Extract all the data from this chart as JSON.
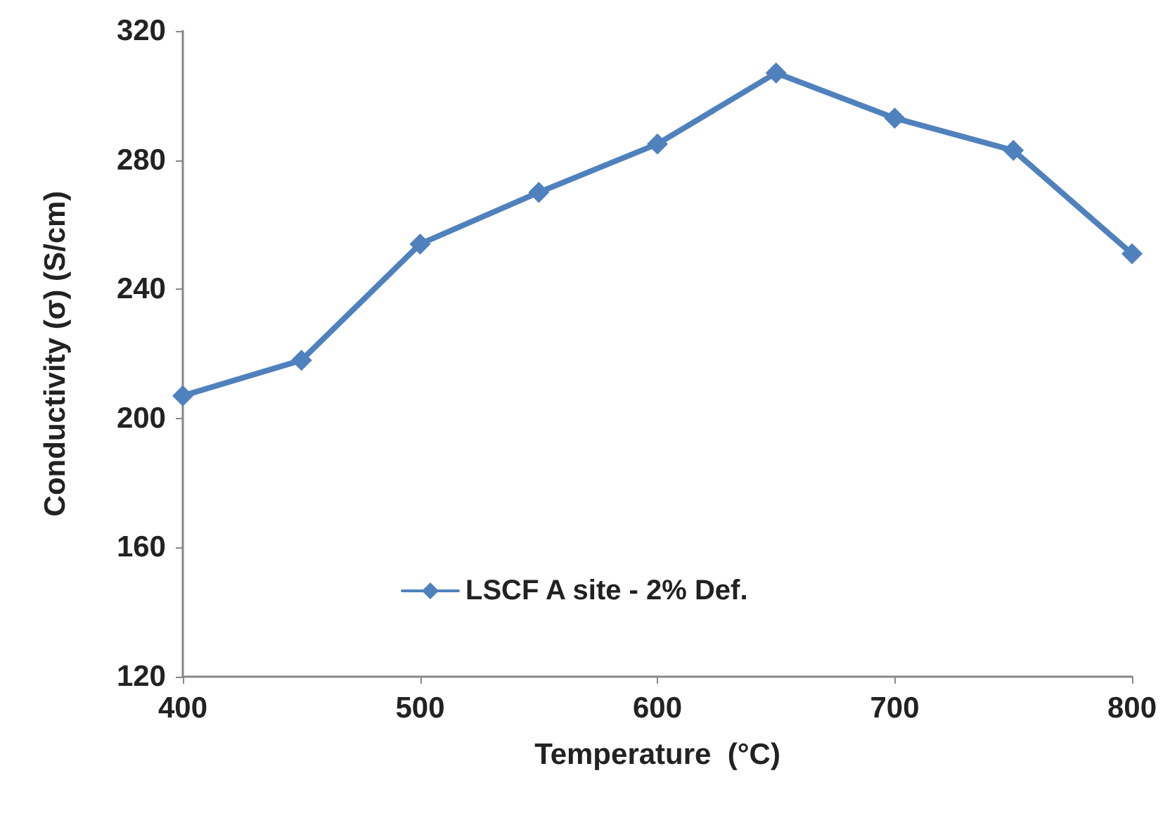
{
  "chart_data": {
    "type": "line",
    "xlabel": "Temperature  (°C)",
    "ylabel": "Conductivity (σ) (S/cm)",
    "x": [
      400,
      450,
      500,
      550,
      600,
      650,
      700,
      750,
      800
    ],
    "series": [
      {
        "name": "LSCF A site - 2% Def.",
        "color": "#4f81bd",
        "values": [
          207,
          218,
          254,
          270,
          285,
          307,
          293,
          283,
          251
        ]
      }
    ],
    "xlim": [
      400,
      800
    ],
    "xticks": [
      400,
      500,
      600,
      700,
      800
    ],
    "ylim": [
      120,
      320
    ],
    "yticks": [
      120,
      160,
      200,
      240,
      280,
      320
    ],
    "grid": false,
    "legend": "bottom",
    "marker": "diamond",
    "line_style": "solid"
  }
}
